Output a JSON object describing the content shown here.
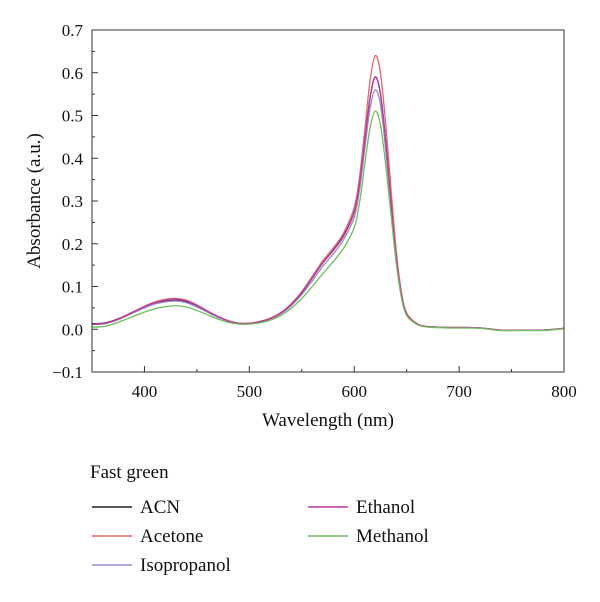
{
  "chart_data": {
    "type": "line",
    "title": "",
    "xlabel": "Wavelength (nm)",
    "ylabel": "Absorbance (a.u.)",
    "xlim": [
      350,
      800
    ],
    "ylim": [
      -0.1,
      0.7
    ],
    "xticks": [
      400,
      500,
      600,
      700,
      800
    ],
    "xtick_labels": [
      "400",
      "500",
      "600",
      "700",
      "800"
    ],
    "yticks": [
      -0.1,
      0.0,
      0.1,
      0.2,
      0.3,
      0.4,
      0.5,
      0.6,
      0.7
    ],
    "ytick_labels": [
      "−0.1",
      "0.0",
      "0.1",
      "0.2",
      "0.3",
      "0.4",
      "0.5",
      "0.6",
      "0.7"
    ],
    "grid": false,
    "legend": {
      "title": "Fast green",
      "placement": "bottom"
    },
    "x": [
      350,
      360,
      370,
      380,
      390,
      400,
      410,
      420,
      430,
      440,
      450,
      460,
      470,
      480,
      490,
      500,
      510,
      520,
      530,
      540,
      550,
      560,
      570,
      580,
      590,
      600,
      605,
      610,
      615,
      620,
      625,
      630,
      635,
      640,
      645,
      650,
      660,
      670,
      680,
      690,
      700,
      720,
      740,
      760,
      780,
      800
    ],
    "series": [
      {
        "name": "ACN",
        "color": "#222222",
        "values": [
          0.013,
          0.014,
          0.02,
          0.03,
          0.041,
          0.052,
          0.061,
          0.066,
          0.068,
          0.064,
          0.054,
          0.041,
          0.029,
          0.019,
          0.014,
          0.014,
          0.018,
          0.025,
          0.038,
          0.058,
          0.085,
          0.12,
          0.155,
          0.185,
          0.22,
          0.275,
          0.34,
          0.44,
          0.54,
          0.59,
          0.55,
          0.44,
          0.3,
          0.17,
          0.08,
          0.035,
          0.012,
          0.006,
          0.005,
          0.004,
          0.004,
          0.003,
          -0.002,
          -0.002,
          -0.002,
          0.002
        ]
      },
      {
        "name": "Acetone",
        "color": "#e0686c",
        "values": [
          0.012,
          0.013,
          0.019,
          0.03,
          0.042,
          0.054,
          0.064,
          0.07,
          0.072,
          0.068,
          0.057,
          0.043,
          0.03,
          0.02,
          0.014,
          0.014,
          0.018,
          0.026,
          0.039,
          0.06,
          0.088,
          0.124,
          0.16,
          0.19,
          0.226,
          0.285,
          0.355,
          0.465,
          0.58,
          0.64,
          0.6,
          0.48,
          0.33,
          0.185,
          0.088,
          0.038,
          0.013,
          0.006,
          0.005,
          0.004,
          0.004,
          0.003,
          -0.002,
          -0.002,
          -0.002,
          0.002
        ]
      },
      {
        "name": "Isopropanol",
        "color": "#8f8fcf",
        "values": [
          0.011,
          0.012,
          0.018,
          0.028,
          0.039,
          0.05,
          0.059,
          0.064,
          0.066,
          0.062,
          0.052,
          0.04,
          0.028,
          0.019,
          0.013,
          0.013,
          0.017,
          0.024,
          0.036,
          0.055,
          0.081,
          0.113,
          0.147,
          0.176,
          0.21,
          0.262,
          0.325,
          0.42,
          0.515,
          0.56,
          0.525,
          0.42,
          0.29,
          0.165,
          0.078,
          0.034,
          0.012,
          0.006,
          0.005,
          0.004,
          0.004,
          0.003,
          -0.002,
          -0.002,
          -0.002,
          0.002
        ]
      },
      {
        "name": "Ethanol",
        "color": "#c0399a",
        "values": [
          0.012,
          0.013,
          0.019,
          0.029,
          0.041,
          0.053,
          0.062,
          0.068,
          0.07,
          0.066,
          0.055,
          0.042,
          0.03,
          0.02,
          0.014,
          0.014,
          0.018,
          0.025,
          0.038,
          0.058,
          0.086,
          0.12,
          0.155,
          0.184,
          0.218,
          0.274,
          0.34,
          0.44,
          0.54,
          0.59,
          0.552,
          0.44,
          0.3,
          0.17,
          0.08,
          0.035,
          0.012,
          0.006,
          0.005,
          0.004,
          0.004,
          0.003,
          -0.002,
          -0.002,
          -0.002,
          0.002
        ]
      },
      {
        "name": "Methanol",
        "color": "#6cbf5a",
        "values": [
          0.005,
          0.006,
          0.012,
          0.021,
          0.031,
          0.04,
          0.048,
          0.053,
          0.055,
          0.052,
          0.044,
          0.034,
          0.024,
          0.016,
          0.012,
          0.012,
          0.015,
          0.021,
          0.032,
          0.049,
          0.072,
          0.1,
          0.13,
          0.158,
          0.19,
          0.238,
          0.295,
          0.385,
          0.47,
          0.51,
          0.478,
          0.385,
          0.27,
          0.155,
          0.074,
          0.032,
          0.011,
          0.005,
          0.004,
          0.003,
          0.003,
          0.002,
          -0.003,
          -0.003,
          -0.003,
          0.001
        ]
      }
    ]
  }
}
